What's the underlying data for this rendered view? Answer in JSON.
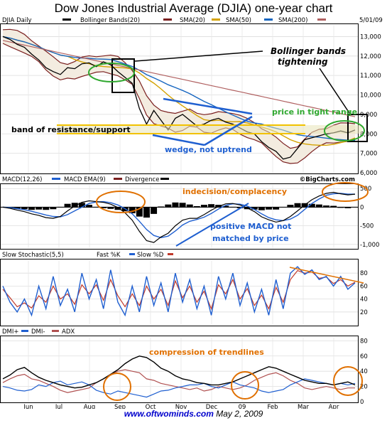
{
  "title": "Dow Jones Industrial Average (DJIA) one-year chart",
  "footer": {
    "site": "www.oftwominds.com",
    "date": "May 2, 2009"
  },
  "colors": {
    "price": "#000000",
    "boll": "#7a1f1f",
    "sma20": "#7a1f1f",
    "sma50": "#d4a200",
    "sma200": "#1565c0",
    "sma_long": "#b06060",
    "macd": "#000000",
    "signal": "#1f5fd0",
    "fast": "#1f5fd0",
    "slow": "#c0392b",
    "dmiplus": "#1f5fd0",
    "dmiminus": "#b05050",
    "adx": "#000000",
    "annot_orange": "#e07000",
    "annot_blue": "#1f5fd0",
    "annot_green": "#2fa82f",
    "band": "#f2c200",
    "band_fill": "#e8e3b8",
    "histo": "#000000"
  },
  "chart_data": [
    {
      "type": "line",
      "panel": "price",
      "header": {
        "symbol": "DJIA Daily",
        "bands": "Bollinger Bands(20)",
        "sma20": "SMA(20)",
        "sma50": "SMA(50)",
        "sma200": "SMA(200)",
        "date": "5/01/09"
      },
      "y_ticks": [
        "6,000",
        "7,000",
        "8,000",
        "9,000",
        "10,000",
        "11,000",
        "12,000",
        "13,000"
      ],
      "ylim": [
        6000,
        13600
      ],
      "x_labels": [
        "Jun",
        "Jul",
        "Aug",
        "Sep",
        "Oct",
        "Nov",
        "Dec",
        "09",
        "Feb",
        "Mar",
        "Apr"
      ],
      "weeks": 50,
      "close": [
        13000,
        12850,
        12600,
        12450,
        12100,
        11800,
        11400,
        11200,
        11050,
        11400,
        11350,
        11600,
        11650,
        11450,
        11700,
        11550,
        11200,
        10900,
        10600,
        9300,
        8500,
        9200,
        8700,
        8200,
        8800,
        9000,
        8700,
        8400,
        8500,
        8700,
        8800,
        8600,
        8500,
        8300,
        8100,
        8000,
        7600,
        7300,
        7100,
        6700,
        6800,
        7250,
        7700,
        7800,
        7900,
        8000,
        8050,
        8150,
        8050,
        8200
      ],
      "annotations": [
        "Bollinger bands tightening",
        "price in tight range",
        "band of resistance/support",
        "wedge, not uptrend"
      ],
      "watermark": "©BigCharts.com"
    },
    {
      "type": "line",
      "panel": "macd",
      "header": {
        "macd": "MACD(12,26)",
        "ema": "MACD EMA(9)",
        "div": "Divergence"
      },
      "y_ticks": [
        "500",
        "0",
        "-500",
        "-1,000"
      ],
      "ylim": [
        -1100,
        600
      ],
      "macd": [
        0,
        -30,
        -80,
        -120,
        -180,
        -220,
        -280,
        -300,
        -250,
        -100,
        30,
        130,
        170,
        150,
        130,
        80,
        -10,
        -150,
        -350,
        -650,
        -900,
        -950,
        -800,
        -700,
        -500,
        -350,
        -300,
        -300,
        -200,
        -80,
        20,
        90,
        100,
        60,
        -20,
        -120,
        -260,
        -340,
        -400,
        -360,
        -250,
        -100,
        60,
        200,
        300,
        370,
        400,
        360,
        330,
        350
      ],
      "signal": [
        0,
        -10,
        -40,
        -70,
        -110,
        -160,
        -210,
        -250,
        -260,
        -200,
        -100,
        0,
        100,
        140,
        150,
        120,
        60,
        -40,
        -180,
        -380,
        -600,
        -760,
        -820,
        -780,
        -640,
        -480,
        -380,
        -330,
        -270,
        -170,
        -50,
        50,
        90,
        80,
        30,
        -60,
        -180,
        -280,
        -340,
        -360,
        -320,
        -220,
        -60,
        100,
        220,
        320,
        360,
        370,
        350,
        350
      ],
      "annotations": [
        "indecision/complacency",
        "positive MACD not matched by price"
      ]
    },
    {
      "type": "line",
      "panel": "stochastic",
      "header": {
        "slow": "Slow Stochastic(5,5)",
        "fast": "Fast %K",
        "slowd": "Slow %D"
      },
      "y_ticks": [
        "80",
        "60",
        "40",
        "20"
      ],
      "ylim": [
        0,
        100
      ],
      "fast": [
        60,
        35,
        20,
        40,
        15,
        60,
        25,
        75,
        30,
        55,
        20,
        80,
        40,
        70,
        25,
        85,
        35,
        15,
        60,
        20,
        75,
        30,
        65,
        20,
        80,
        35,
        70,
        25,
        60,
        15,
        75,
        40,
        80,
        30,
        65,
        20,
        55,
        15,
        70,
        25,
        80,
        90,
        78,
        85,
        70,
        75,
        60,
        75,
        55,
        65
      ],
      "slowd": [
        55,
        42,
        28,
        34,
        26,
        45,
        35,
        60,
        40,
        48,
        32,
        62,
        48,
        62,
        38,
        70,
        45,
        28,
        48,
        30,
        60,
        40,
        55,
        30,
        68,
        42,
        60,
        35,
        52,
        25,
        62,
        48,
        70,
        40,
        56,
        30,
        46,
        25,
        58,
        35,
        70,
        84,
        80,
        82,
        72,
        74,
        64,
        70,
        60,
        66
      ],
      "annotations": []
    },
    {
      "type": "line",
      "panel": "dmi",
      "header": {
        "plus": "DMI+",
        "minus": "DMI-",
        "adx": "ADX"
      },
      "y_ticks": [
        "80",
        "60",
        "40",
        "20",
        "0"
      ],
      "ylim": [
        0,
        85
      ],
      "dmiplus": [
        20,
        18,
        15,
        14,
        16,
        22,
        20,
        25,
        27,
        22,
        24,
        26,
        22,
        15,
        12,
        10,
        14,
        12,
        10,
        8,
        6,
        10,
        14,
        15,
        18,
        20,
        22,
        22,
        24,
        20,
        18,
        22,
        26,
        22,
        20,
        18,
        14,
        12,
        14,
        16,
        22,
        26,
        30,
        28,
        26,
        24,
        22,
        24,
        22,
        24
      ],
      "dmiminus": [
        25,
        30,
        34,
        36,
        30,
        28,
        24,
        20,
        15,
        12,
        14,
        16,
        18,
        25,
        30,
        36,
        40,
        42,
        40,
        38,
        30,
        28,
        24,
        22,
        20,
        18,
        16,
        18,
        14,
        16,
        20,
        18,
        16,
        18,
        22,
        28,
        32,
        36,
        38,
        34,
        28,
        24,
        18,
        16,
        18,
        20,
        18,
        16,
        18,
        18
      ],
      "adx": [
        30,
        35,
        42,
        45,
        38,
        32,
        28,
        25,
        22,
        20,
        18,
        19,
        22,
        25,
        30,
        36,
        42,
        50,
        56,
        60,
        58,
        52,
        44,
        40,
        34,
        30,
        28,
        25,
        24,
        22,
        22,
        24,
        26,
        30,
        34,
        38,
        42,
        46,
        44,
        40,
        36,
        32,
        28,
        26,
        24,
        24,
        22,
        24,
        26,
        22
      ],
      "annotations": [
        "compression of trendlines"
      ]
    }
  ]
}
